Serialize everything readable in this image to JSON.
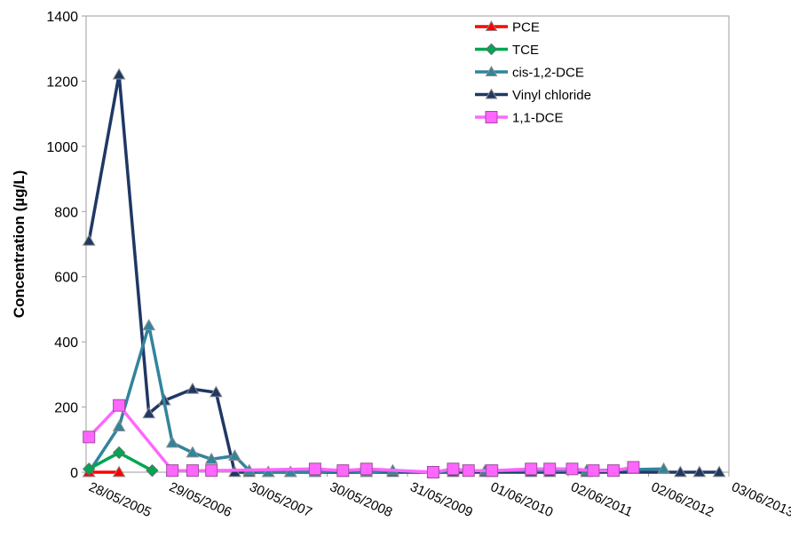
{
  "chart_data": {
    "type": "line",
    "title": "",
    "xlabel": "",
    "ylabel": "Concentration (µg/L)",
    "ylim": [
      0,
      1400
    ],
    "yticks": [
      0,
      200,
      400,
      600,
      800,
      1000,
      1200,
      1400
    ],
    "xlim": [
      "2005-05-28",
      "2013-06-03"
    ],
    "xticks": [
      {
        "date": "2005-05-28",
        "label": "28/05/2005"
      },
      {
        "date": "2006-05-29",
        "label": "29/05/2006"
      },
      {
        "date": "2007-05-30",
        "label": "30/05/2007"
      },
      {
        "date": "2008-05-30",
        "label": "30/05/2008"
      },
      {
        "date": "2009-05-31",
        "label": "31/05/2009"
      },
      {
        "date": "2010-06-01",
        "label": "01/06/2010"
      },
      {
        "date": "2011-06-02",
        "label": "02/06/2011"
      },
      {
        "date": "2012-06-02",
        "label": "02/06/2012"
      },
      {
        "date": "2013-06-03",
        "label": "03/06/2013"
      }
    ],
    "grid": false,
    "legend_position": "top-right",
    "series": [
      {
        "name": "PCE",
        "color": "#ff0000",
        "marker": "triangle",
        "points": [
          [
            "2005-06-10",
            0
          ],
          [
            "2005-10-25",
            0
          ]
        ]
      },
      {
        "name": "TCE",
        "color": "#00a651",
        "marker": "diamond",
        "points": [
          [
            "2005-06-10",
            10
          ],
          [
            "2005-10-25",
            60
          ],
          [
            "2006-03-25",
            5
          ]
        ]
      },
      {
        "name": "cis-1,2-DCE",
        "color": "#31859c",
        "marker": "triangle",
        "points": [
          [
            "2005-06-10",
            0
          ],
          [
            "2005-10-25",
            140
          ],
          [
            "2006-03-10",
            450
          ],
          [
            "2006-06-25",
            90
          ],
          [
            "2006-09-25",
            60
          ],
          [
            "2006-12-20",
            40
          ],
          [
            "2007-04-05",
            50
          ],
          [
            "2007-06-10",
            5
          ],
          [
            "2007-09-05",
            0
          ],
          [
            "2007-12-15",
            0
          ],
          [
            "2008-04-05",
            0
          ],
          [
            "2008-08-10",
            5
          ],
          [
            "2008-11-25",
            0
          ],
          [
            "2009-03-25",
            5
          ],
          [
            "2009-09-25",
            0
          ],
          [
            "2009-12-25",
            5
          ],
          [
            "2010-05-20",
            5
          ],
          [
            "2010-06-20",
            5
          ],
          [
            "2010-12-15",
            5
          ],
          [
            "2011-08-25",
            5
          ],
          [
            "2012-08-10",
            10
          ]
        ]
      },
      {
        "name": "Vinyl chloride",
        "color": "#1f3864",
        "marker": "triangle",
        "points": [
          [
            "2005-06-10",
            710
          ],
          [
            "2005-10-25",
            1220
          ],
          [
            "2006-03-10",
            180
          ],
          [
            "2006-05-20",
            220
          ],
          [
            "2006-09-25",
            255
          ],
          [
            "2007-01-10",
            245
          ],
          [
            "2007-04-05",
            0
          ],
          [
            "2007-06-10",
            0
          ],
          [
            "2007-09-05",
            0
          ],
          [
            "2007-12-15",
            0
          ],
          [
            "2008-04-05",
            0
          ],
          [
            "2008-08-10",
            0
          ],
          [
            "2008-11-25",
            0
          ],
          [
            "2009-03-25",
            0
          ],
          [
            "2009-09-25",
            0
          ],
          [
            "2009-12-25",
            0
          ],
          [
            "2010-05-20",
            0
          ],
          [
            "2010-06-20",
            0
          ],
          [
            "2010-12-15",
            0
          ],
          [
            "2011-03-10",
            0
          ],
          [
            "2011-08-25",
            0
          ],
          [
            "2012-10-25",
            0
          ],
          [
            "2013-01-20",
            0
          ],
          [
            "2013-04-20",
            0
          ]
        ]
      },
      {
        "name": "1,1-DCE",
        "color": "#ff66ff",
        "marker": "square",
        "points": [
          [
            "2005-06-10",
            108
          ],
          [
            "2005-10-25",
            205
          ],
          [
            "2006-06-25",
            5
          ],
          [
            "2006-09-25",
            5
          ],
          [
            "2006-12-20",
            5
          ],
          [
            "2008-04-05",
            10
          ],
          [
            "2008-08-10",
            5
          ],
          [
            "2008-11-25",
            10
          ],
          [
            "2009-09-25",
            0
          ],
          [
            "2009-12-25",
            10
          ],
          [
            "2010-03-05",
            5
          ],
          [
            "2010-06-20",
            5
          ],
          [
            "2010-12-15",
            10
          ],
          [
            "2011-03-10",
            10
          ],
          [
            "2011-06-20",
            10
          ],
          [
            "2011-09-25",
            5
          ],
          [
            "2011-12-25",
            5
          ],
          [
            "2012-03-25",
            15
          ]
        ]
      }
    ]
  }
}
